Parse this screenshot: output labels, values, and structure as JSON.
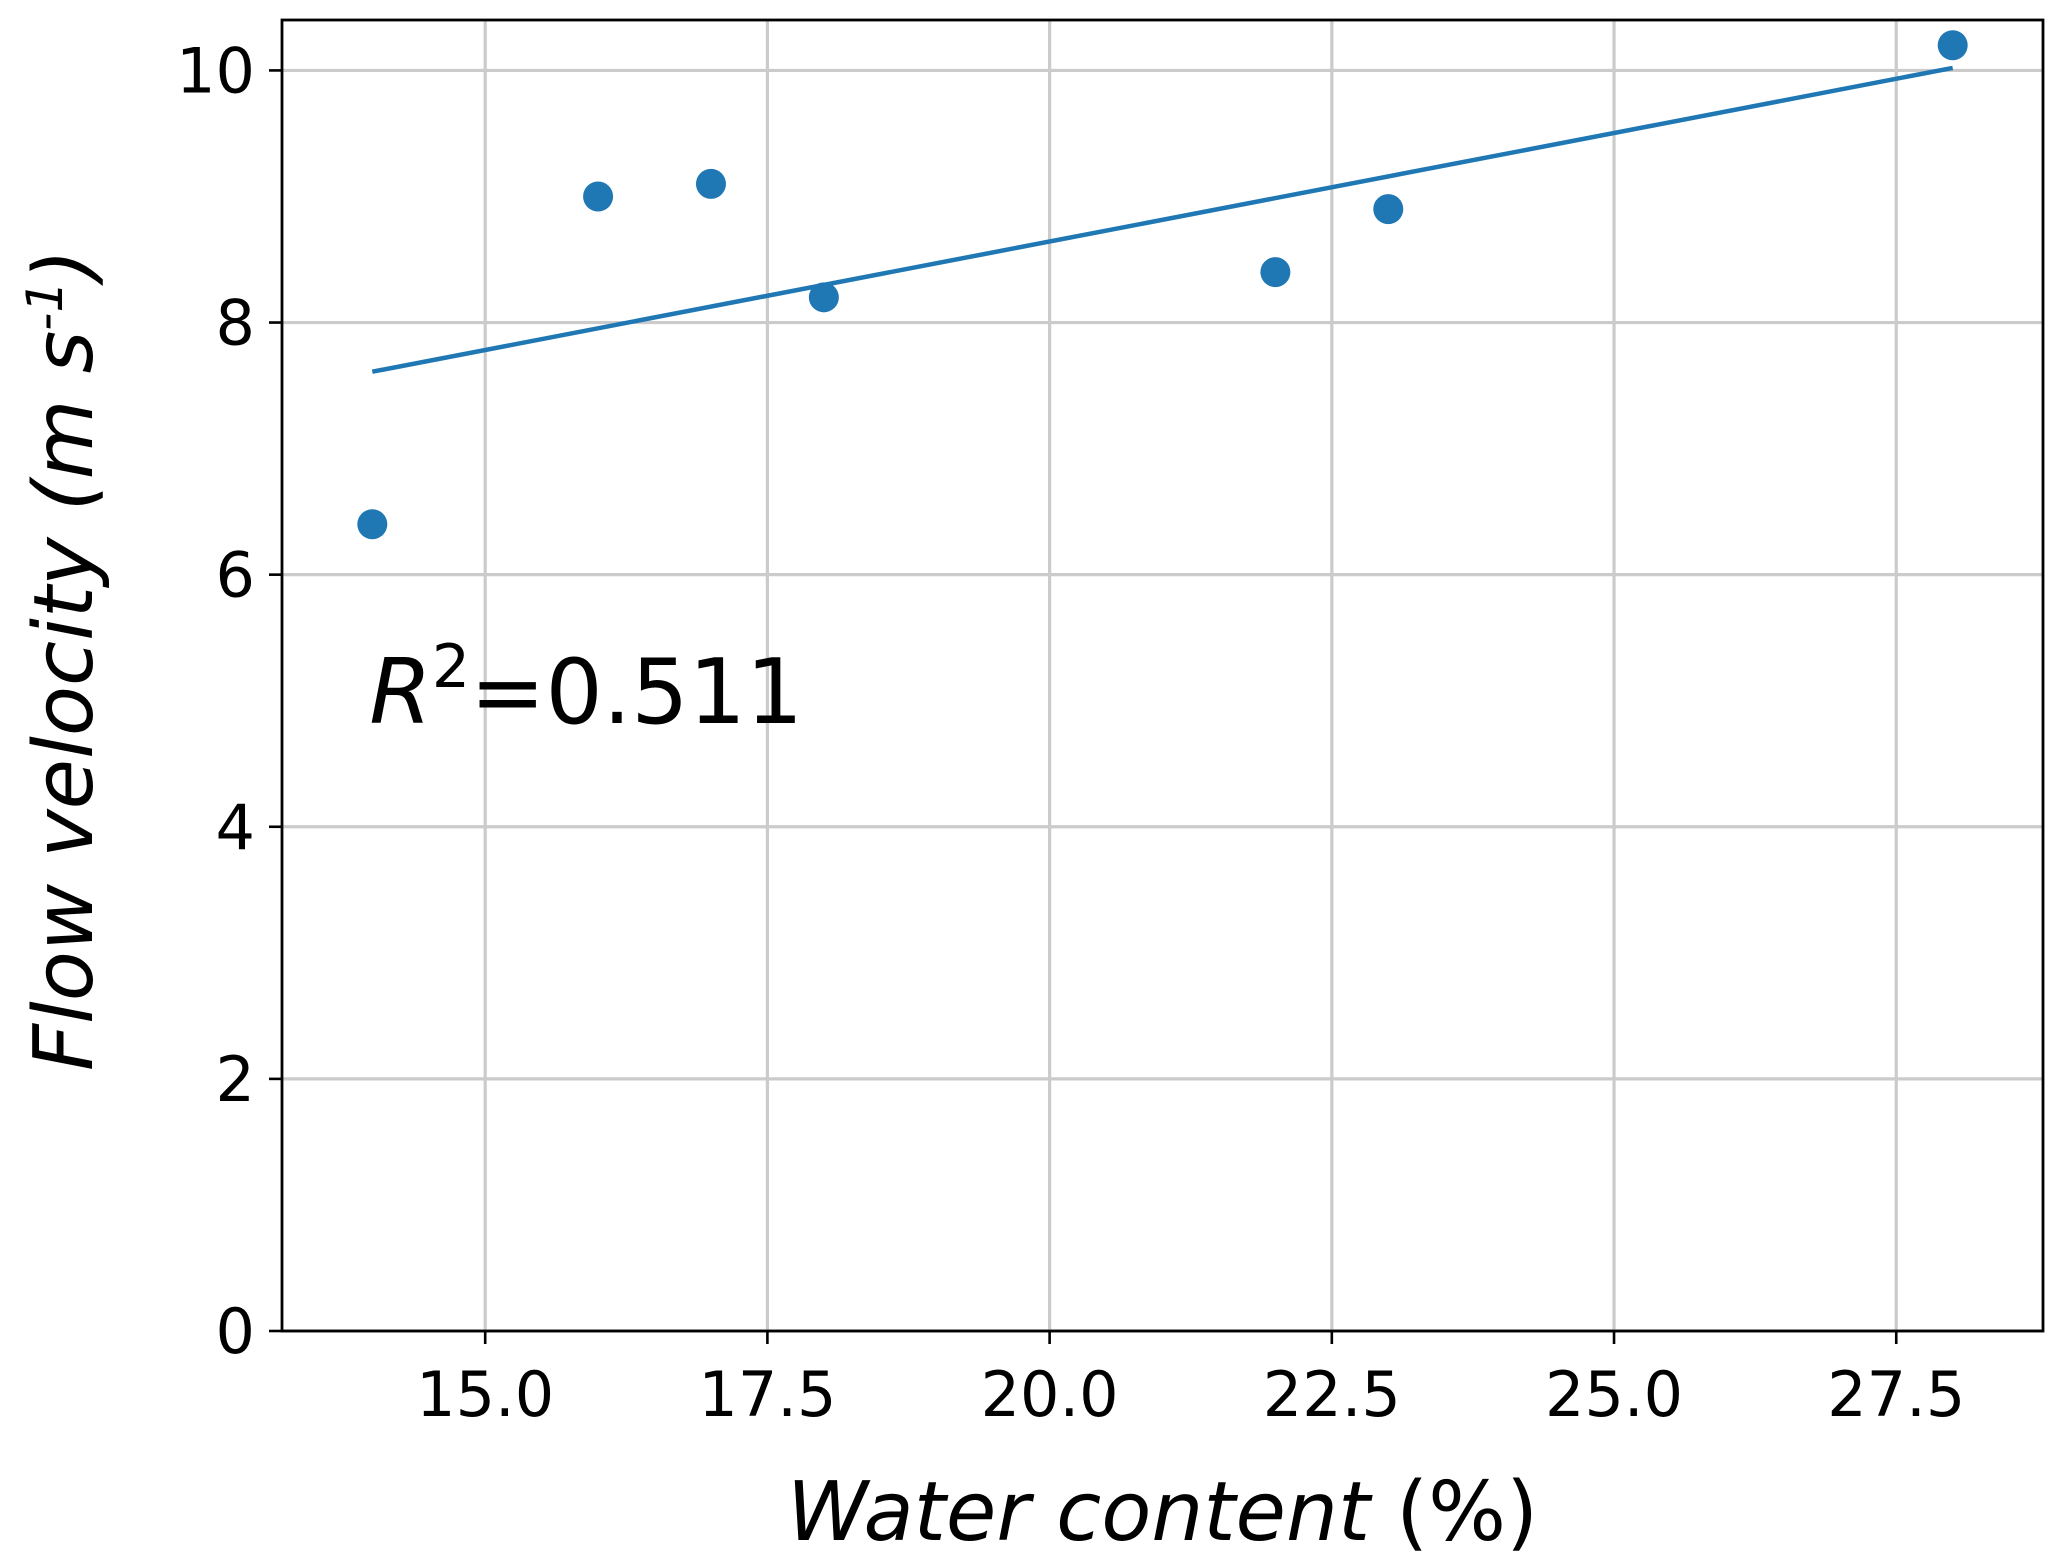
{
  "chart_data": {
    "type": "scatter",
    "xlabel": {
      "italic": "Water content",
      "normal": " (%)"
    },
    "ylabel": {
      "prefix": "Flow velocity (m s",
      "sup": "-1",
      "suffix": ")"
    },
    "xlim": [
      13.2,
      28.8
    ],
    "ylim": [
      0,
      10.4
    ],
    "x_ticks": [
      15.0,
      17.5,
      20.0,
      22.5,
      25.0,
      27.5
    ],
    "x_tick_labels": [
      "15.0",
      "17.5",
      "20.0",
      "22.5",
      "25.0",
      "27.5"
    ],
    "y_ticks": [
      0,
      2,
      4,
      6,
      8,
      10
    ],
    "y_tick_labels": [
      "0",
      "2",
      "4",
      "6",
      "8",
      "10"
    ],
    "grid": true,
    "color": "#1f77b4",
    "points": [
      {
        "x": 14,
        "y": 6.4
      },
      {
        "x": 16,
        "y": 9.0
      },
      {
        "x": 17,
        "y": 9.1
      },
      {
        "x": 18,
        "y": 8.2
      },
      {
        "x": 22,
        "y": 8.4
      },
      {
        "x": 23,
        "y": 8.9
      },
      {
        "x": 28,
        "y": 10.2
      }
    ],
    "fit_line": {
      "x": [
        14,
        28
      ],
      "y": [
        7.61,
        10.02
      ]
    },
    "annotation": {
      "var": "R",
      "sup": "2",
      "text": "=0.511",
      "x": 14.0,
      "y": 5.1
    }
  }
}
